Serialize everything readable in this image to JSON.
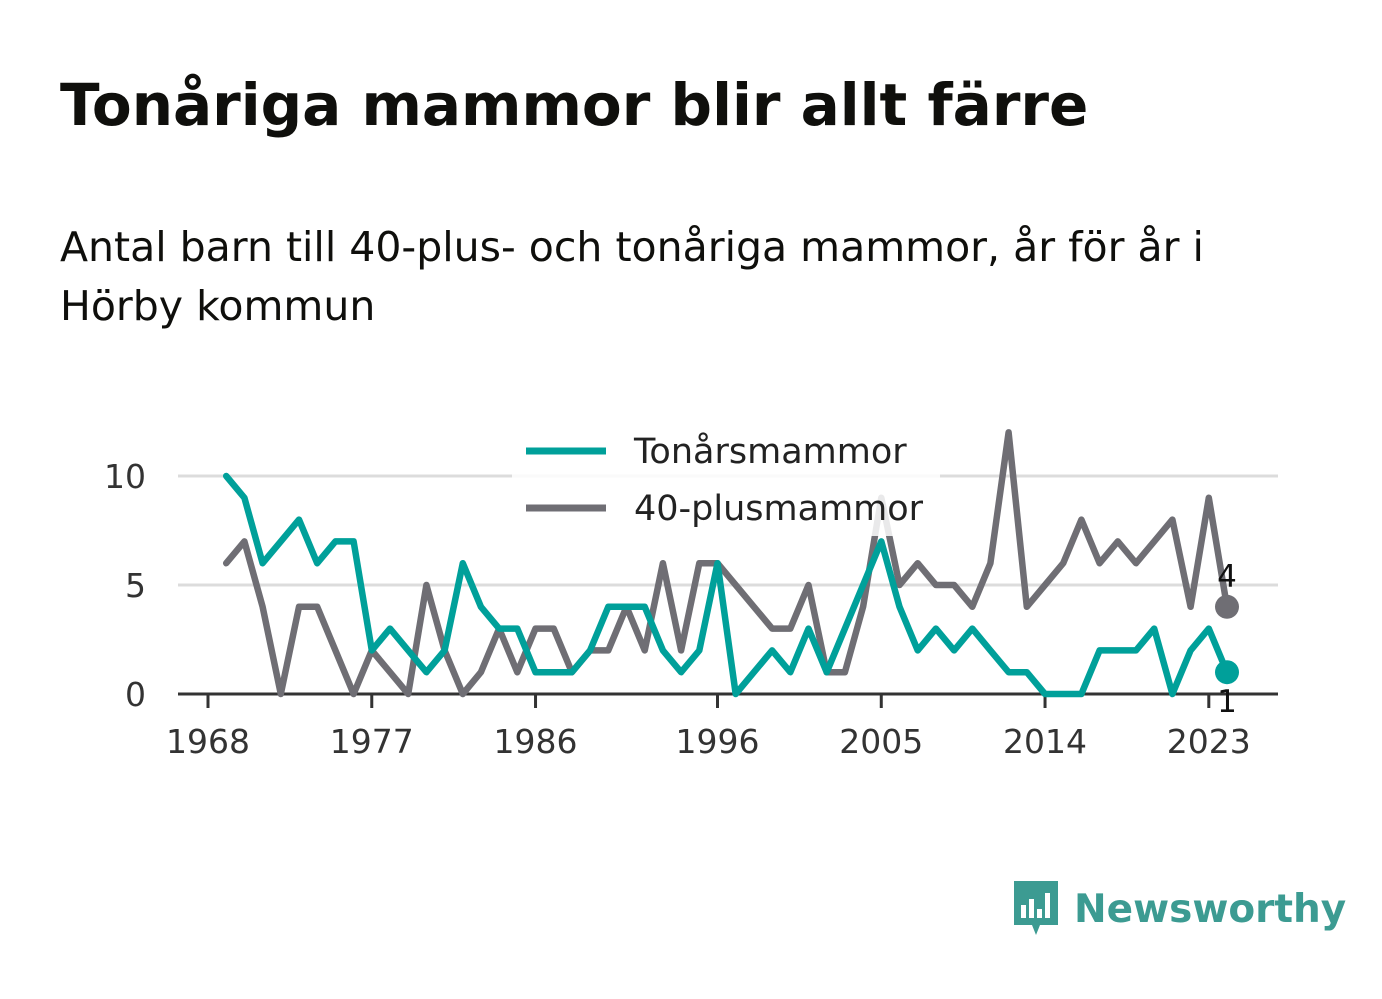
{
  "title": "Tonåriga mammor blir allt färre",
  "subtitle": "Antal barn till 40-plus- och tonåriga mammor, år för år i Hörby kommun",
  "brand": {
    "name": "Newsworthy",
    "icon": "newsworthy-logo-icon",
    "color": "#3c9b92"
  },
  "chart_data": {
    "type": "line",
    "title": "Tonåriga mammor blir allt färre",
    "subtitle": "Antal barn till 40-plus- och tonåriga mammor, år för år i Hörby kommun",
    "xlabel": "",
    "ylabel": "",
    "xlim": [
      1968,
      2024
    ],
    "ylim": [
      0,
      12
    ],
    "x_ticks": [
      "1968",
      "1977",
      "1986",
      "1996",
      "2005",
      "2014",
      "2023"
    ],
    "y_ticks": [
      "0",
      "5",
      "10"
    ],
    "grid": true,
    "legend_position": "top",
    "x": [
      1969,
      1970,
      1971,
      1972,
      1973,
      1974,
      1975,
      1976,
      1977,
      1978,
      1979,
      1980,
      1981,
      1982,
      1983,
      1984,
      1985,
      1986,
      1987,
      1988,
      1989,
      1990,
      1991,
      1992,
      1993,
      1994,
      1995,
      1996,
      1997,
      1998,
      1999,
      2000,
      2001,
      2002,
      2003,
      2004,
      2005,
      2006,
      2007,
      2008,
      2009,
      2010,
      2011,
      2012,
      2013,
      2014,
      2015,
      2016,
      2017,
      2018,
      2019,
      2020,
      2021,
      2022,
      2023,
      2024
    ],
    "series": [
      {
        "name": "Tonårsmammor",
        "color": "#00a09a",
        "values": [
          10,
          9,
          6,
          7,
          8,
          6,
          7,
          7,
          2,
          3,
          2,
          1,
          2,
          6,
          4,
          3,
          3,
          1,
          1,
          1,
          2,
          4,
          4,
          4,
          2,
          1,
          2,
          6,
          0,
          1,
          2,
          1,
          3,
          1,
          3,
          5,
          7,
          4,
          2,
          3,
          2,
          3,
          2,
          1,
          1,
          0,
          0,
          0,
          2,
          2,
          2,
          3,
          0,
          2,
          3,
          1
        ],
        "end_label": "1"
      },
      {
        "name": "40-plusmammor",
        "color": "#6f6e74",
        "values": [
          6,
          7,
          4,
          0,
          4,
          4,
          2,
          0,
          2,
          1,
          0,
          5,
          2,
          0,
          1,
          3,
          1,
          3,
          3,
          1,
          2,
          2,
          4,
          2,
          6,
          2,
          6,
          6,
          5,
          4,
          3,
          3,
          5,
          1,
          1,
          4,
          9,
          5,
          6,
          5,
          5,
          4,
          6,
          12,
          4,
          5,
          6,
          8,
          6,
          7,
          6,
          7,
          8,
          4,
          9,
          4
        ],
        "end_label": "4"
      }
    ]
  }
}
